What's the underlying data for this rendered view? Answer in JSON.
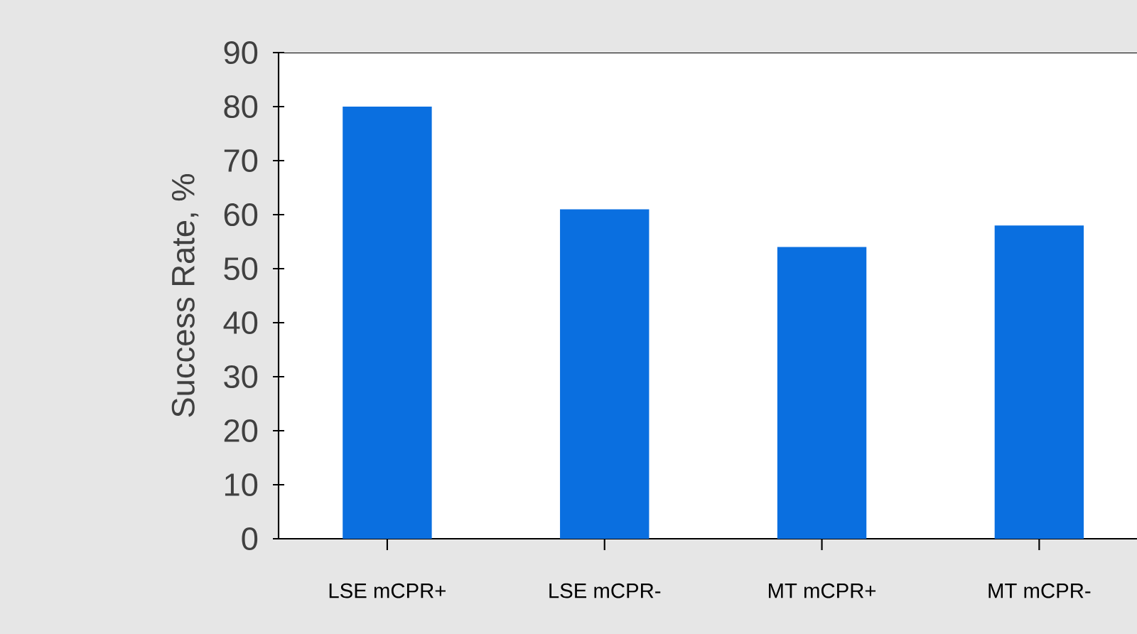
{
  "chart_data": {
    "type": "bar",
    "ylabel": "Success Rate, %",
    "categories": [
      "LSE mCPR+",
      "LSE mCPR-",
      "MT mCPR+",
      "MT mCPR-"
    ],
    "values": [
      80,
      61,
      54,
      58
    ],
    "color": "#0a6fe0",
    "ylim": [
      0,
      90
    ],
    "yticks": [
      0,
      10,
      20,
      30,
      40,
      50,
      60,
      70,
      80,
      90
    ]
  }
}
